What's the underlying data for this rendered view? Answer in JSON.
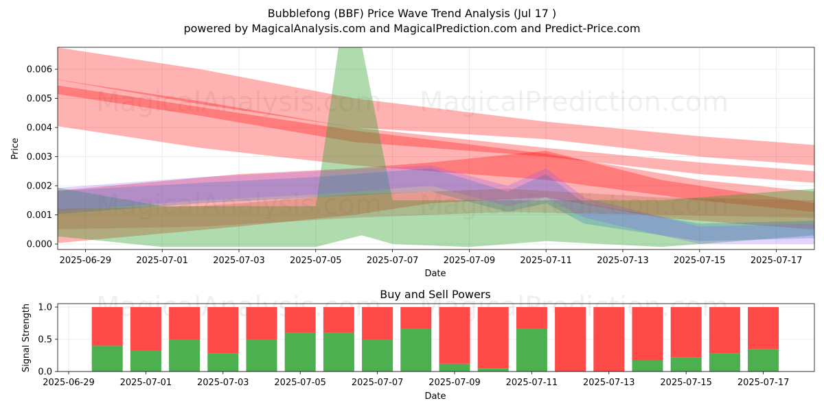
{
  "header": {
    "title": "Bubblefong (BBF) Price Wave Trend Analysis (Jul 17 )",
    "subtitle": "powered by MagicalAnalysis.com and MagicalPrediction.com and Predict-Price.com"
  },
  "watermarks": [
    "MagicalAnalysis.com",
    "MagicalPrediction.com"
  ],
  "colors": {
    "red": "#ff0000",
    "green": "#2ca02c",
    "blue": "#1f77b4",
    "purple": "#8c52ff",
    "brown": "#a0522d",
    "buy": "#4caf50",
    "sell": "#ff4a4a"
  },
  "chart_data": [
    {
      "type": "area",
      "title": "",
      "xlabel": "Date",
      "ylabel": "Price",
      "x_ticks": [
        "2025-06-29",
        "2025-07-01",
        "2025-07-03",
        "2025-07-05",
        "2025-07-07",
        "2025-07-09",
        "2025-07-11",
        "2025-07-13",
        "2025-07-15",
        "2025-07-17"
      ],
      "y_ticks": [
        "0.000",
        "0.001",
        "0.002",
        "0.003",
        "0.004",
        "0.005",
        "0.006"
      ],
      "xlim": [
        "2025-06-28",
        "2025-07-18"
      ],
      "ylim": [
        -0.0002,
        0.0067
      ],
      "grid": true,
      "series": [
        {
          "color": "red",
          "x": [
            "2025-06-28",
            "2025-07-02",
            "2025-07-06",
            "2025-07-11",
            "2025-07-15",
            "2025-07-18"
          ],
          "lower": [
            0.0041,
            0.0033,
            0.0027,
            0.0022,
            0.0015,
            0.0011
          ],
          "upper": [
            0.0055,
            0.0047,
            0.0039,
            0.0031,
            0.0022,
            0.0018
          ]
        },
        {
          "color": "red",
          "x": [
            "2025-06-28",
            "2025-07-02",
            "2025-07-06",
            "2025-07-11",
            "2025-07-15",
            "2025-07-18"
          ],
          "lower": [
            0.0052,
            0.0044,
            0.0035,
            0.003,
            0.0024,
            0.0021
          ],
          "upper": [
            0.0057,
            0.0049,
            0.004,
            0.0033,
            0.0028,
            0.0025
          ]
        },
        {
          "color": "red",
          "x": [
            "2025-06-28",
            "2025-07-02",
            "2025-07-06",
            "2025-07-11",
            "2025-07-15",
            "2025-07-18"
          ],
          "lower": [
            0.0057,
            0.0048,
            0.004,
            0.0036,
            0.003,
            0.0027
          ],
          "upper": [
            0.0068,
            0.006,
            0.005,
            0.0042,
            0.0037,
            0.0034
          ]
        },
        {
          "color": "red",
          "x": [
            "2025-06-28",
            "2025-07-03",
            "2025-07-06",
            "2025-07-08",
            "2025-07-11",
            "2025-07-14",
            "2025-07-18"
          ],
          "lower": [
            0.0,
            0.0006,
            0.001,
            0.0014,
            0.0016,
            0.0009,
            0.0005
          ],
          "upper": [
            0.0018,
            0.0024,
            0.0026,
            0.0028,
            0.0032,
            0.0022,
            0.0014
          ]
        },
        {
          "color": "green",
          "x": [
            "2025-06-28",
            "2025-07-01",
            "2025-07-04",
            "2025-07-05",
            "2025-07-05.6",
            "2025-07-06.2",
            "2025-07-07",
            "2025-07-09",
            "2025-07-11",
            "2025-07-14",
            "2025-07-18"
          ],
          "lower": [
            0.0003,
            -0.0001,
            -0.0001,
            -0.0001,
            0.0001,
            0.0003,
            0.0,
            -0.0001,
            0.0001,
            -0.0001,
            0.0003
          ],
          "upper": [
            0.002,
            0.0013,
            0.0013,
            0.0013,
            0.0068,
            0.0068,
            0.0015,
            0.0015,
            0.0015,
            0.0015,
            0.0019
          ]
        },
        {
          "color": "blue",
          "x": [
            "2025-06-28",
            "2025-07-02",
            "2025-07-05",
            "2025-07-08",
            "2025-07-10",
            "2025-07-11",
            "2025-07-12",
            "2025-07-15",
            "2025-07-18"
          ],
          "lower": [
            0.001,
            0.0014,
            0.0016,
            0.0018,
            0.0011,
            0.0014,
            0.0007,
            0.0001,
            0.0002
          ],
          "upper": [
            0.0018,
            0.0021,
            0.0023,
            0.0026,
            0.0018,
            0.0024,
            0.0014,
            0.0007,
            0.0008
          ]
        },
        {
          "color": "purple",
          "x": [
            "2025-06-28",
            "2025-07-02",
            "2025-07-05",
            "2025-07-08",
            "2025-07-10",
            "2025-07-11",
            "2025-07-12",
            "2025-07-15",
            "2025-07-18"
          ],
          "lower": [
            0.0011,
            0.0015,
            0.0017,
            0.002,
            0.0013,
            0.0016,
            0.0009,
            0.0,
            0.0
          ],
          "upper": [
            0.0019,
            0.0023,
            0.0025,
            0.0027,
            0.002,
            0.0026,
            0.0016,
            0.0006,
            0.0007
          ]
        },
        {
          "color": "brown",
          "x": [
            "2025-06-28",
            "2025-07-02",
            "2025-07-06",
            "2025-07-10",
            "2025-07-14",
            "2025-07-18"
          ],
          "lower": [
            0.0005,
            0.0006,
            0.0009,
            0.0011,
            0.001,
            0.0009
          ],
          "upper": [
            0.0012,
            0.0013,
            0.0017,
            0.0019,
            0.0016,
            0.0015
          ]
        }
      ]
    },
    {
      "type": "bar",
      "title": "Buy and Sell Powers",
      "xlabel": "Date",
      "ylabel": "Signal Strength",
      "x_ticks": [
        "2025-06-29",
        "2025-07-01",
        "2025-07-03",
        "2025-07-05",
        "2025-07-07",
        "2025-07-09",
        "2025-07-11",
        "2025-07-13",
        "2025-07-15",
        "2025-07-17"
      ],
      "y_ticks": [
        "0.0",
        "0.5",
        "1.0"
      ],
      "ylim": [
        0,
        1.05
      ],
      "grid": true,
      "categories": [
        "2025-06-30",
        "2025-07-01",
        "2025-07-02",
        "2025-07-03",
        "2025-07-04",
        "2025-07-05",
        "2025-07-06",
        "2025-07-07",
        "2025-07-08",
        "2025-07-09",
        "2025-07-10",
        "2025-07-11",
        "2025-07-12",
        "2025-07-13",
        "2025-07-14",
        "2025-07-15",
        "2025-07-16",
        "2025-07-17"
      ],
      "series": [
        {
          "color": "buy",
          "values": [
            0.4,
            0.33,
            0.5,
            0.28,
            0.5,
            0.6,
            0.6,
            0.5,
            0.67,
            0.12,
            0.05,
            0.67,
            0.0,
            0.0,
            0.17,
            0.22,
            0.28,
            0.35
          ]
        },
        {
          "color": "sell",
          "values": [
            0.6,
            0.67,
            0.5,
            0.72,
            0.5,
            0.4,
            0.4,
            0.5,
            0.33,
            0.88,
            0.95,
            0.33,
            1.0,
            1.0,
            0.83,
            0.78,
            0.72,
            0.65
          ]
        }
      ]
    }
  ]
}
